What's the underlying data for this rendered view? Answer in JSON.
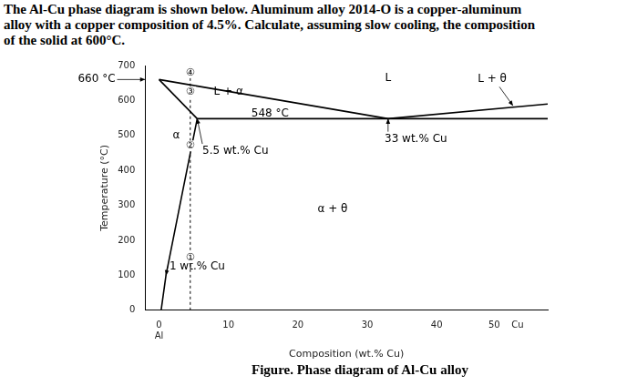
{
  "question": {
    "lines": [
      "The Al-Cu phase diagram is shown below. Aluminum alloy 2014-O is a copper-aluminum",
      "alloy with a copper composition of 4.5%. Calculate, assuming slow cooling, the composition",
      "of the solid at 600°C."
    ]
  },
  "caption": "Figure. Phase diagram of Al-Cu alloy",
  "chart_data": {
    "type": "line",
    "x_label": "Composition (wt.% Cu)",
    "y_label": "Temperature (°C)",
    "xlim": [
      -2,
      56
    ],
    "ylim": [
      0,
      700
    ],
    "xticks": [
      {
        "value": 0,
        "label": "0\nAl"
      },
      10,
      20,
      30,
      40,
      {
        "value": 50,
        "label": "50    Cu"
      }
    ],
    "yticks": [
      0,
      100,
      200,
      300,
      400,
      500,
      600,
      700
    ],
    "grid": false,
    "series": [
      {
        "color": "#000000",
        "line_style": "solid",
        "x": [
          0,
          33
        ],
        "values": [
          660,
          548
        ]
      },
      {
        "color": "#000000",
        "line_style": "solid",
        "x": [
          0,
          5.5
        ],
        "values": [
          660,
          548
        ]
      },
      {
        "color": "#000000",
        "line_style": "solid",
        "x": [
          5.5,
          3.5,
          1,
          0.3
        ],
        "values": [
          548,
          350,
          100,
          0
        ]
      },
      {
        "color": "#000000",
        "line_style": "solid",
        "x": [
          5.5,
          56
        ],
        "values": [
          548,
          548
        ]
      },
      {
        "color": "#000000",
        "line_style": "solid",
        "x": [
          33,
          56
        ],
        "values": [
          548,
          590
        ]
      },
      {
        "color": "#000000",
        "line_style": "dashed",
        "x": [
          4.5,
          4.5
        ],
        "values": [
          0,
          700
        ]
      }
    ],
    "annotations": [
      {
        "text": "660 °C",
        "x": -9,
        "y": 660,
        "arrow_to": [
          -2,
          660
        ]
      },
      {
        "text": "α",
        "x": 2.5,
        "y": 500
      },
      {
        "text": "L + α",
        "x": 10,
        "y": 625
      },
      {
        "text": "L",
        "x": 33,
        "y": 665
      },
      {
        "text": "L + θ",
        "x": 48,
        "y": 660,
        "arrow_to": [
          51,
          585
        ]
      },
      {
        "text": "548 °C",
        "x": 16,
        "y": 563
      },
      {
        "text": "5.5 wt.% Cu",
        "x": 11,
        "y": 455,
        "arrow_to": [
          5.5,
          548
        ]
      },
      {
        "text": "33 wt.% Cu",
        "x": 37,
        "y": 490,
        "arrow_to": [
          33,
          548
        ]
      },
      {
        "text": "α + θ",
        "x": 25,
        "y": 290
      },
      {
        "text": "1 wt.% Cu",
        "x": 5.5,
        "y": 125,
        "arrow_to": [
          1,
          100
        ]
      },
      {
        "text": "①",
        "x": 4.5,
        "y": 150
      },
      {
        "text": "②",
        "x": 4.5,
        "y": 470
      },
      {
        "text": "③",
        "x": 4.5,
        "y": 625
      },
      {
        "text": "④",
        "x": 4.5,
        "y": 680
      }
    ]
  }
}
